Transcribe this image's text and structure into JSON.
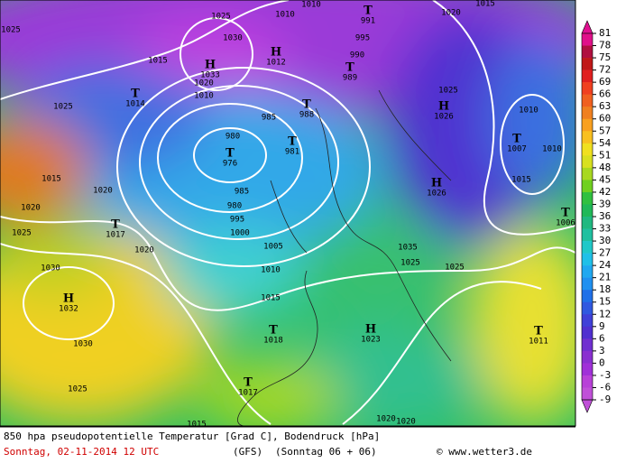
{
  "map": {
    "title": "850 hpa pseudopotentielle Temperatur [Grad C], Bodendruck [hPa]",
    "date": "Sonntag, 02-11-2014  12 UTC",
    "model": "(GFS)",
    "run": "(Sonntag 06 + 06)",
    "credit": "© www.wetter3.de"
  },
  "legend": {
    "ticks": [
      81,
      78,
      75,
      72,
      69,
      66,
      63,
      60,
      57,
      54,
      51,
      48,
      45,
      42,
      39,
      36,
      33,
      30,
      27,
      24,
      21,
      18,
      15,
      12,
      9,
      6,
      3,
      0,
      -3,
      -6,
      -9
    ]
  },
  "pressure_centers": [
    {
      "symbol": "T",
      "value": 991
    },
    {
      "symbol": "H",
      "value": 1033
    },
    {
      "symbol": "H",
      "value": 1012
    },
    {
      "symbol": "T",
      "value": 989
    },
    {
      "symbol": "T",
      "value": 1014
    },
    {
      "symbol": "T",
      "value": 988
    },
    {
      "symbol": "H",
      "value": 1026
    },
    {
      "symbol": "T",
      "value": 1007
    },
    {
      "symbol": "T",
      "value": 976
    },
    {
      "symbol": "T",
      "value": 981
    },
    {
      "symbol": "H",
      "value": 1026
    },
    {
      "symbol": "T",
      "value": 1017
    },
    {
      "symbol": "H",
      "value": 1032
    },
    {
      "symbol": "T",
      "value": 1018
    },
    {
      "symbol": "H",
      "value": 1023
    },
    {
      "symbol": "T",
      "value": 1011
    },
    {
      "symbol": "T",
      "value": 1017
    },
    {
      "symbol": "T",
      "value": 1006
    }
  ],
  "isobar_labels": [
    1025,
    1025,
    1010,
    1010,
    1020,
    1015,
    1030,
    1020,
    1010,
    995,
    990,
    1015,
    1025,
    985,
    1025,
    1010,
    1010,
    980,
    985,
    980,
    995,
    1000,
    1015,
    1020,
    1015,
    1020,
    1025,
    1020,
    1005,
    1035,
    1025,
    1010,
    1025,
    1030,
    1015,
    1030,
    1025,
    1020,
    1020,
    1015
  ]
}
